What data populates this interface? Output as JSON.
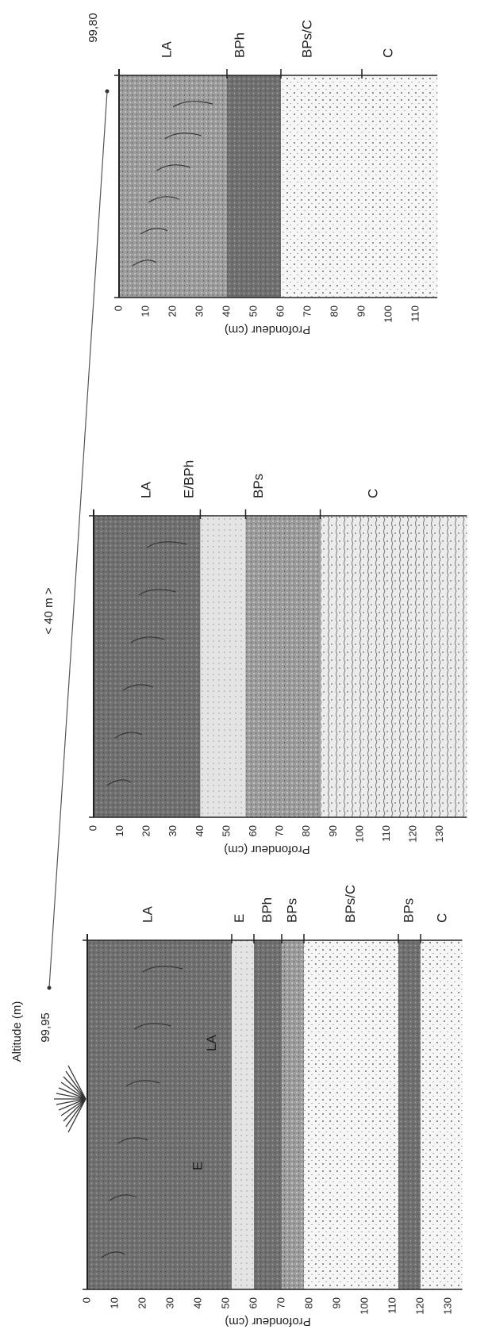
{
  "header": {
    "altitude_label": "Altitude (m)",
    "distance": "< 40 m >"
  },
  "profiles": [
    {
      "altitude": "99,95",
      "depth_label": "Profondeur (cm)",
      "depth_ticks": [
        0,
        10,
        20,
        30,
        40,
        50,
        60,
        70,
        80,
        90,
        100,
        110,
        120,
        130
      ],
      "horizons": [
        "LA",
        "E",
        "BPh",
        "BPs",
        "BPs/C",
        "BPs",
        "C"
      ],
      "inset_labels": [
        "E",
        "LA"
      ]
    },
    {
      "depth_label": "Profondeur (cm)",
      "depth_ticks": [
        0,
        10,
        20,
        30,
        40,
        50,
        60,
        70,
        80,
        90,
        100,
        110,
        120,
        130
      ],
      "horizons": [
        "LA",
        "E/BPh",
        "BPs",
        "C"
      ]
    },
    {
      "altitude": "99,80",
      "depth_label": "Profondeur (cm)",
      "depth_ticks": [
        0,
        10,
        20,
        30,
        40,
        50,
        60,
        70,
        80,
        90,
        100,
        110
      ],
      "horizons": [
        "LA",
        "BPh",
        "BPs/C",
        "C"
      ]
    }
  ]
}
